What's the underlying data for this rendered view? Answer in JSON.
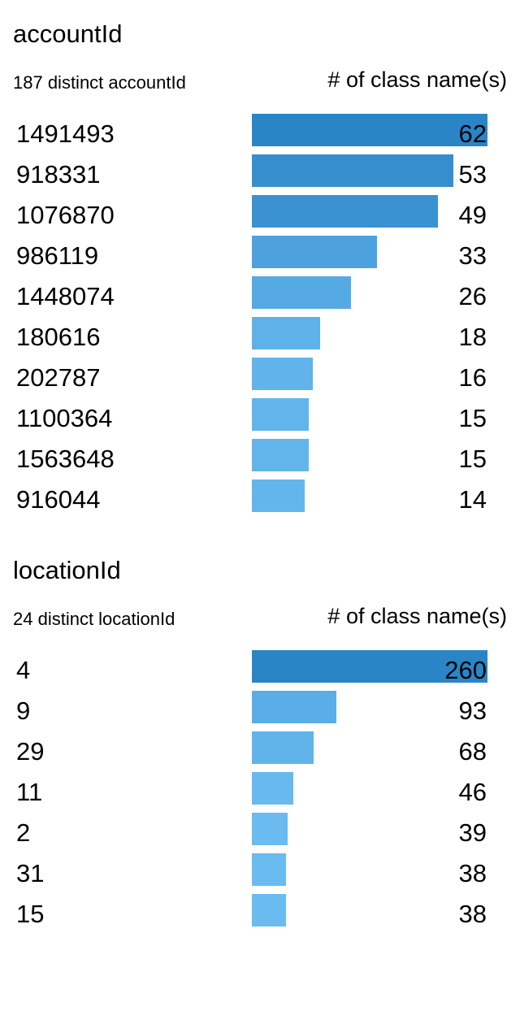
{
  "sections": [
    {
      "title": "accountId",
      "distinct": "187 distinct accountId",
      "header": "# of class name(s)",
      "rows": [
        {
          "label": "1491493",
          "value": 62
        },
        {
          "label": "918331",
          "value": 53
        },
        {
          "label": "1076870",
          "value": 49
        },
        {
          "label": "986119",
          "value": 33
        },
        {
          "label": "1448074",
          "value": 26
        },
        {
          "label": "180616",
          "value": 18
        },
        {
          "label": "202787",
          "value": 16
        },
        {
          "label": "1100364",
          "value": 15
        },
        {
          "label": "1563648",
          "value": 15
        },
        {
          "label": "916044",
          "value": 14
        }
      ]
    },
    {
      "title": "locationId",
      "distinct": "24 distinct locationId",
      "header": "# of class name(s)",
      "rows": [
        {
          "label": "4",
          "value": 260
        },
        {
          "label": "9",
          "value": 93
        },
        {
          "label": "29",
          "value": 68
        },
        {
          "label": "11",
          "value": 46
        },
        {
          "label": "2",
          "value": 39
        },
        {
          "label": "31",
          "value": 38
        },
        {
          "label": "15",
          "value": 38
        }
      ]
    }
  ],
  "chart_data": [
    {
      "type": "bar",
      "title": "accountId",
      "subtitle": "187 distinct accountId",
      "ylabel": "# of class name(s)",
      "categories": [
        "1491493",
        "918331",
        "1076870",
        "986119",
        "1448074",
        "180616",
        "202787",
        "1100364",
        "1563648",
        "916044"
      ],
      "values": [
        62,
        53,
        49,
        33,
        26,
        18,
        16,
        15,
        15,
        14
      ],
      "orientation": "horizontal"
    },
    {
      "type": "bar",
      "title": "locationId",
      "subtitle": "24 distinct locationId",
      "ylabel": "# of class name(s)",
      "categories": [
        "4",
        "9",
        "29",
        "11",
        "2",
        "31",
        "15"
      ],
      "values": [
        260,
        93,
        68,
        46,
        39,
        38,
        38
      ],
      "orientation": "horizontal"
    }
  ],
  "colors": {
    "bar_dark": "#2a85c7",
    "bar_light": "#74c4f7"
  }
}
